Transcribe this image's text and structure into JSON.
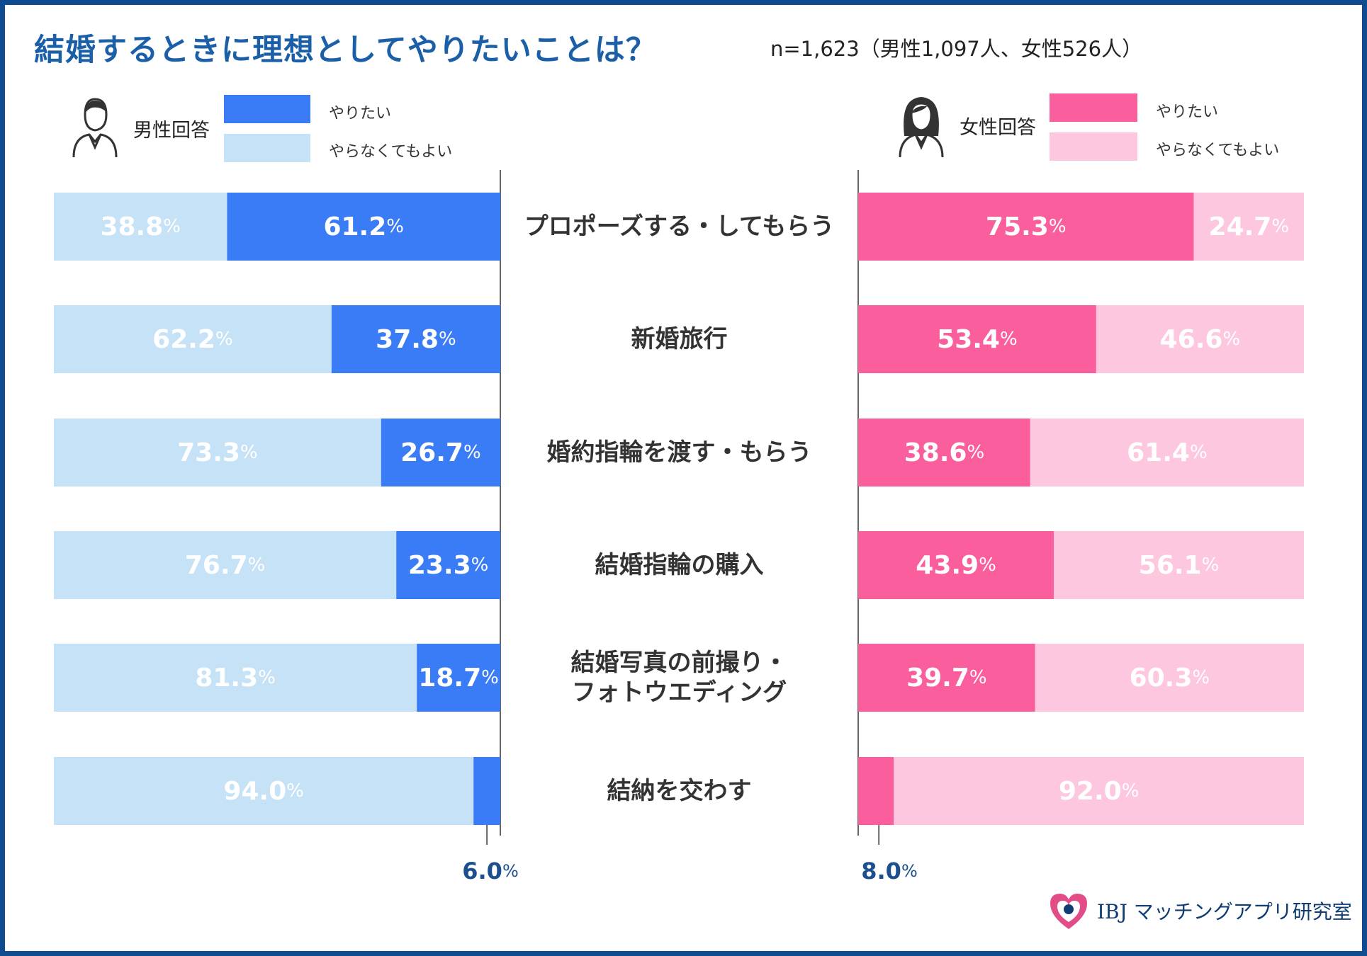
{
  "title": "結婚するときに理想としてやりたいことは？",
  "sample_note": "n=1,623（男性1,097人、女性526人）",
  "legend": {
    "male": {
      "label": "男性回答",
      "want": "やりたい",
      "not_needed": "やらなくてもよい"
    },
    "female": {
      "label": "女性回答",
      "want": "やりたい",
      "not_needed": "やらなくてもよい"
    }
  },
  "colors": {
    "male_want": "#3a7cf6",
    "male_not": "#c5e2f7",
    "female_want": "#fa5e9c",
    "female_not": "#fec7e0",
    "title": "#1b5fa8",
    "frame": "#0f4c8f"
  },
  "chart_data": {
    "type": "bar",
    "orientation": "horizontal-stacked-butterfly",
    "title": "結婚するときに理想としてやりたいことは？",
    "categories": [
      [
        "プロポーズする・してもらう"
      ],
      [
        "新婚旅行"
      ],
      [
        "婚約指輪を渡す・もらう"
      ],
      [
        "結婚指輪の購入"
      ],
      [
        "結婚写真の前撮り・",
        "フォトウエディング"
      ],
      [
        "結納を交わす"
      ]
    ],
    "male": {
      "label": "男性回答",
      "series": [
        {
          "name": "やりたい",
          "values": [
            61.2,
            37.8,
            26.7,
            23.3,
            18.7,
            6.0
          ]
        },
        {
          "name": "やらなくてもよい",
          "values": [
            38.8,
            62.2,
            73.3,
            76.7,
            81.3,
            94.0
          ]
        }
      ]
    },
    "female": {
      "label": "女性回答",
      "series": [
        {
          "name": "やりたい",
          "values": [
            75.3,
            53.4,
            38.6,
            43.9,
            39.7,
            8.0
          ]
        },
        {
          "name": "やらなくてもよい",
          "values": [
            24.7,
            46.6,
            61.4,
            56.1,
            60.3,
            92.0
          ]
        }
      ]
    },
    "unit": "%",
    "xlim": [
      0,
      100
    ]
  },
  "brand": {
    "logo_text": "IBJ",
    "name": "マッチングアプリ研究室"
  }
}
